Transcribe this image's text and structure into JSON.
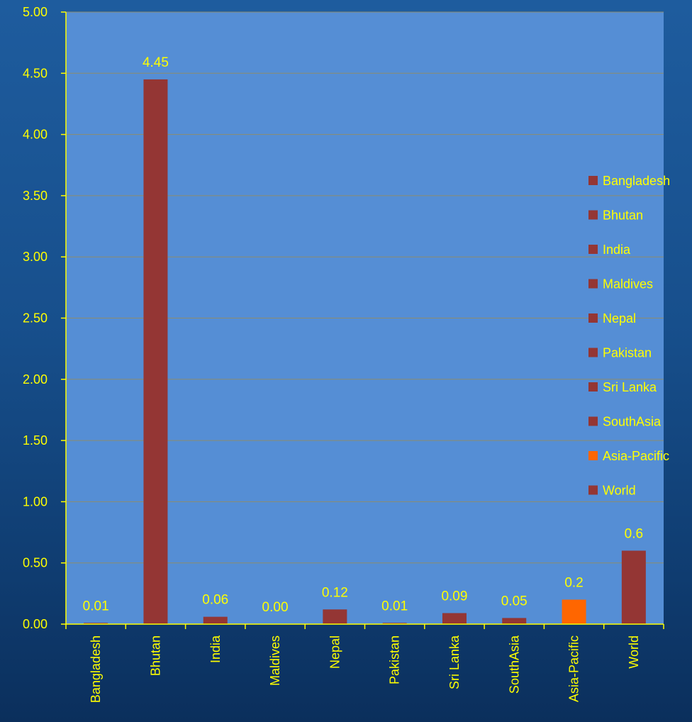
{
  "chart_data": {
    "type": "bar",
    "categories": [
      "Bangladesh",
      "Bhutan",
      "India",
      "Maldives",
      "Nepal",
      "Pakistan",
      "Sri Lanka",
      "SouthAsia",
      "Asia-Pacific",
      "World"
    ],
    "values": [
      0.01,
      4.45,
      0.06,
      0.0,
      0.12,
      0.01,
      0.09,
      0.05,
      0.2,
      0.6
    ],
    "data_labels": [
      "0.01",
      "4.45",
      "0.06",
      "0.00",
      "0.12",
      "0.01",
      "0.09",
      "0.05",
      "0.2",
      "0.6"
    ],
    "bar_colors": [
      "#943634",
      "#943634",
      "#943634",
      "#943634",
      "#943634",
      "#943634",
      "#943634",
      "#943634",
      "#FF6600",
      "#943634"
    ],
    "ylim": [
      0,
      5
    ],
    "y_ticks": [
      "0.00",
      "0.50",
      "1.00",
      "1.50",
      "2.00",
      "2.50",
      "3.00",
      "3.50",
      "4.00",
      "4.50",
      "5.00"
    ],
    "y_tick_values": [
      0,
      0.5,
      1,
      1.5,
      2,
      2.5,
      3,
      3.5,
      4,
      4.5,
      5
    ],
    "legend": [
      "Bangladesh",
      "Bhutan",
      "India",
      "Maldives",
      "Nepal",
      "Pakistan",
      "Sri Lanka",
      "SouthAsia",
      "Asia-Pacific",
      "World"
    ],
    "legend_position": "right",
    "grid": true,
    "xlabel": "",
    "ylabel": "",
    "title": ""
  },
  "colors": {
    "plot_area": "#558ED5",
    "gridline": "#8C8C6E",
    "axis": "#FFFF00",
    "text": "#FFFF00"
  }
}
